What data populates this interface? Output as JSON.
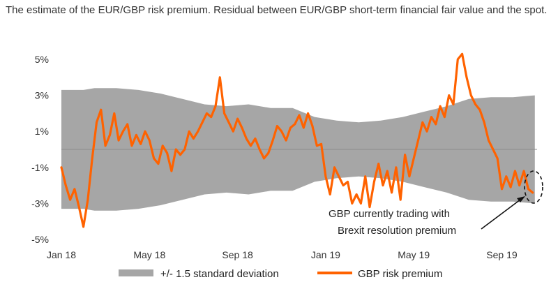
{
  "title": "The estimate of the EUR/GBP risk premium. Residual between EUR/GBP short-term financial fair value and the spot.",
  "chart_data": {
    "type": "line",
    "x_ticks": [
      "Jan 18",
      "May 18",
      "Sep 18",
      "Jan 19",
      "May 19",
      "Sep 19"
    ],
    "y_ticks": [
      "5%",
      "3%",
      "1%",
      "-1%",
      "-3%",
      "-5%"
    ],
    "ylim": [
      -5,
      6
    ],
    "grid": false,
    "legend_position": "bottom",
    "colors": {
      "band": "#a6a6a6",
      "line": "#ff6200",
      "zero": "#8c8c8c"
    },
    "series": [
      {
        "name": "+/- 1.5 standard deviation",
        "type": "band",
        "t": [
          0,
          1,
          1.5,
          2.5,
          3.5,
          4.5,
          5.5,
          6.5,
          7.5,
          8.5,
          9.5,
          10.5,
          11.5,
          12.5,
          13.5,
          14.5,
          15.5,
          16.5,
          17.5,
          18.5,
          19.5,
          20.5,
          21.5
        ],
        "upper": [
          3.3,
          3.3,
          3.4,
          3.4,
          3.3,
          3.1,
          2.8,
          2.5,
          2.4,
          2.5,
          2.3,
          2.3,
          1.8,
          1.6,
          1.5,
          1.6,
          1.8,
          2.1,
          2.4,
          2.8,
          2.9,
          2.9,
          3.0
        ],
        "lower": [
          -3.3,
          -3.3,
          -3.4,
          -3.4,
          -3.3,
          -3.1,
          -2.8,
          -2.5,
          -2.4,
          -2.5,
          -2.3,
          -2.3,
          -1.8,
          -1.6,
          -1.5,
          -1.6,
          -1.8,
          -2.1,
          -2.4,
          -2.8,
          -2.9,
          -2.9,
          -3.0
        ]
      },
      {
        "name": "GBP risk premium",
        "type": "line",
        "t": [
          0,
          0.2,
          0.4,
          0.6,
          0.8,
          1.0,
          1.2,
          1.4,
          1.6,
          1.8,
          2.0,
          2.2,
          2.4,
          2.6,
          2.8,
          3.0,
          3.2,
          3.4,
          3.6,
          3.8,
          4.0,
          4.2,
          4.4,
          4.6,
          4.8,
          5.0,
          5.2,
          5.4,
          5.6,
          5.8,
          6.0,
          6.2,
          6.4,
          6.6,
          6.8,
          7.0,
          7.2,
          7.4,
          7.6,
          7.8,
          8.0,
          8.2,
          8.4,
          8.6,
          8.8,
          9.0,
          9.2,
          9.4,
          9.6,
          9.8,
          10.0,
          10.2,
          10.4,
          10.6,
          10.8,
          11.0,
          11.2,
          11.4,
          11.6,
          11.8,
          12.0,
          12.2,
          12.4,
          12.6,
          12.8,
          13.0,
          13.2,
          13.4,
          13.6,
          13.8,
          14.0,
          14.2,
          14.4,
          14.6,
          14.8,
          15.0,
          15.2,
          15.4,
          15.6,
          15.8,
          16.0,
          16.2,
          16.4,
          16.6,
          16.8,
          17.0,
          17.2,
          17.4,
          17.6,
          17.8,
          18.0,
          18.2,
          18.4,
          18.6,
          18.8,
          19.0,
          19.2,
          19.4,
          19.6,
          19.8,
          20.0,
          20.2,
          20.4,
          20.6,
          20.8,
          21.0,
          21.2,
          21.4
        ],
        "values": [
          -1.0,
          -2.0,
          -2.8,
          -2.2,
          -3.2,
          -4.3,
          -2.8,
          -0.5,
          1.5,
          2.2,
          0.2,
          0.8,
          2.0,
          0.5,
          1.0,
          1.4,
          0.2,
          0.8,
          0.3,
          1.0,
          0.5,
          -0.5,
          -0.8,
          0.2,
          -0.2,
          -1.2,
          0.0,
          -0.3,
          0.0,
          1.0,
          0.6,
          1.0,
          1.5,
          2.0,
          1.8,
          2.4,
          4.0,
          2.0,
          1.5,
          1.0,
          1.7,
          1.2,
          0.6,
          0.2,
          0.6,
          0.0,
          -0.5,
          -0.2,
          0.5,
          1.3,
          1.0,
          0.5,
          1.2,
          1.4,
          1.9,
          1.2,
          2.0,
          1.3,
          0.2,
          0.3,
          -1.5,
          -2.5,
          -1.0,
          -1.5,
          -2.0,
          -1.8,
          -3.0,
          -2.5,
          -3.0,
          -1.5,
          -3.2,
          -1.8,
          -0.8,
          -2.0,
          -1.2,
          -2.4,
          -1.0,
          -2.8,
          -0.3,
          -1.5,
          -0.5,
          0.5,
          1.5,
          1.0,
          1.8,
          1.4,
          2.4,
          1.8,
          3.0,
          2.5,
          5.0,
          5.3,
          4.0,
          3.0,
          2.5,
          2.2,
          1.5,
          0.5,
          0.0,
          -0.5,
          -2.2,
          -1.5,
          -2.1,
          -1.2,
          -2.0,
          -1.2,
          -2.2,
          -2.4
        ]
      }
    ]
  },
  "annotation": {
    "line1": "GBP currently trading with",
    "line2": "Brexit resolution premium"
  }
}
